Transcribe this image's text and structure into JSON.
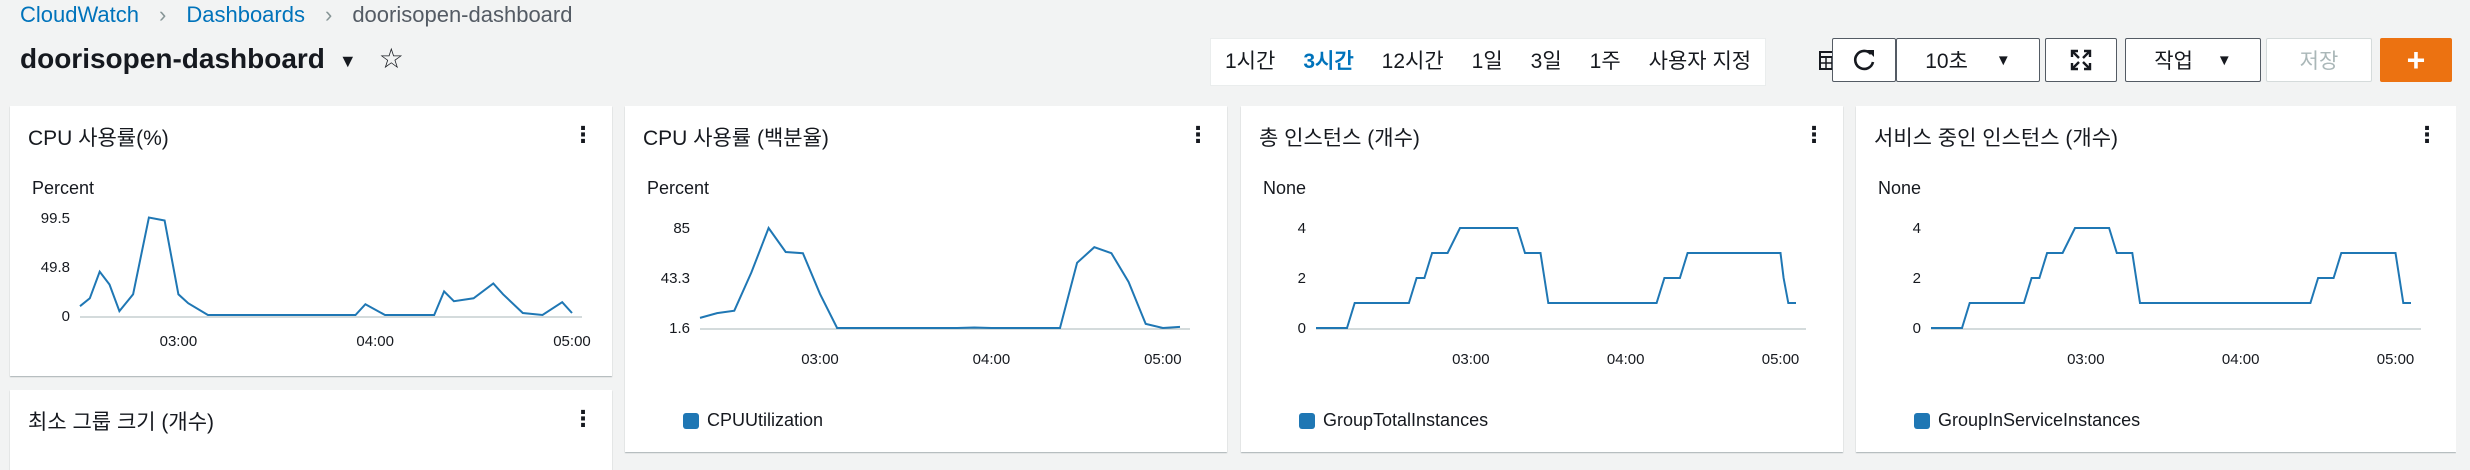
{
  "breadcrumb": {
    "root": "CloudWatch",
    "dashboards": "Dashboards",
    "current": "doorisopen-dashboard"
  },
  "dashboard": {
    "title": "doorisopen-dashboard"
  },
  "time_range": {
    "options": [
      "1시간",
      "3시간",
      "12시간",
      "1일",
      "3일",
      "1주",
      "사용자 지정"
    ],
    "active": "3시간"
  },
  "toolbar": {
    "refresh_interval": "10초",
    "actions_label": "작업",
    "save_label": "저장",
    "add_label": "+"
  },
  "widgets": [
    {
      "title": "CPU 사용률(%)",
      "unit": "Percent"
    },
    {
      "title": "CPU 사용률 (백분율)",
      "unit": "Percent",
      "legend": "CPUUtilization"
    },
    {
      "title": "총 인스턴스 (개수)",
      "unit": "None",
      "legend": "GroupTotalInstances"
    },
    {
      "title": "서비스 중인 인스턴스 (개수)",
      "unit": "None",
      "legend": "GroupInServiceInstances"
    },
    {
      "title": "최소 그룹 크기 (개수)"
    }
  ],
  "colors": {
    "line": "#1f77b4",
    "accent": "#ec7211",
    "link": "#0073bb"
  },
  "chart_data": [
    {
      "type": "line",
      "title": "CPU 사용률(%)",
      "ylabel": "Percent",
      "yticks": [
        "99.5",
        "49.8",
        "0"
      ],
      "ylim": [
        0,
        99.5
      ],
      "xticks": [
        "03:00",
        "04:00",
        "05:00"
      ],
      "xrange": [
        2.5,
        5.0
      ],
      "x": [
        2.5,
        2.55,
        2.6,
        2.65,
        2.7,
        2.77,
        2.85,
        2.93,
        3.0,
        3.05,
        3.15,
        3.25,
        3.35,
        3.45,
        3.55,
        3.65,
        3.75,
        3.85,
        3.9,
        3.95,
        4.05,
        4.15,
        4.25,
        4.3,
        4.35,
        4.4,
        4.5,
        4.6,
        4.65,
        4.75,
        4.85,
        4.95,
        5.0
      ],
      "y": [
        10,
        18,
        45,
        32,
        5,
        22,
        100,
        97,
        22,
        13,
        1,
        1,
        1,
        1,
        1,
        1,
        1,
        1,
        1,
        12,
        1,
        1,
        1,
        1,
        25,
        15,
        18,
        33,
        22,
        3,
        1,
        14,
        3
      ]
    },
    {
      "type": "line",
      "title": "CPU 사용률 (백분율)",
      "ylabel": "Percent",
      "yticks": [
        "85",
        "43.3",
        "1.6"
      ],
      "ylim": [
        1.6,
        85
      ],
      "xticks": [
        "03:00",
        "04:00",
        "05:00"
      ],
      "xrange": [
        2.3,
        5.1
      ],
      "x": [
        2.3,
        2.4,
        2.5,
        2.6,
        2.7,
        2.8,
        2.9,
        3.0,
        3.1,
        3.2,
        3.3,
        3.4,
        3.5,
        3.6,
        3.7,
        3.8,
        3.9,
        4.0,
        4.1,
        4.2,
        4.3,
        4.4,
        4.5,
        4.6,
        4.7,
        4.8,
        4.9,
        5.0,
        5.1
      ],
      "y": [
        10,
        14,
        16,
        48,
        85,
        65,
        64,
        30,
        1.6,
        1.6,
        1.6,
        1.6,
        1.6,
        1.6,
        1.6,
        1.6,
        2,
        1.6,
        1.6,
        1.6,
        1.6,
        1.6,
        56,
        69,
        64,
        40,
        5,
        1.6,
        2.5
      ],
      "series_name": "CPUUtilization"
    },
    {
      "type": "line",
      "title": "총 인스턴스 (개수)",
      "ylabel": "None",
      "yticks": [
        "4",
        "2",
        "0"
      ],
      "ylim": [
        0,
        4
      ],
      "xticks": [
        "03:00",
        "04:00",
        "05:00"
      ],
      "xrange": [
        2.0,
        5.1
      ],
      "x": [
        2.0,
        2.2,
        2.25,
        2.6,
        2.65,
        2.7,
        2.75,
        2.85,
        2.93,
        3.3,
        3.35,
        3.45,
        3.5,
        4.2,
        4.25,
        4.35,
        4.4,
        5.0,
        5.02,
        5.05,
        5.1
      ],
      "y": [
        0,
        0,
        1,
        1,
        2,
        2,
        3,
        3,
        4,
        4,
        3,
        3,
        1,
        1,
        2,
        2,
        3,
        3,
        2,
        1,
        1
      ],
      "series_name": "GroupTotalInstances"
    },
    {
      "type": "line",
      "title": "서비스 중인 인스턴스 (개수)",
      "ylabel": "None",
      "yticks": [
        "4",
        "2",
        "0"
      ],
      "ylim": [
        0,
        4
      ],
      "xticks": [
        "03:00",
        "04:00",
        "05:00"
      ],
      "xrange": [
        2.0,
        5.1
      ],
      "x": [
        2.0,
        2.2,
        2.25,
        2.6,
        2.65,
        2.7,
        2.75,
        2.85,
        2.93,
        3.15,
        3.2,
        3.3,
        3.35,
        4.45,
        4.5,
        4.6,
        4.65,
        5.0,
        5.05,
        5.1
      ],
      "y": [
        0,
        0,
        1,
        1,
        2,
        2,
        3,
        3,
        4,
        4,
        3,
        3,
        1,
        1,
        2,
        2,
        3,
        3,
        1,
        1
      ],
      "series_name": "GroupInServiceInstances"
    }
  ]
}
